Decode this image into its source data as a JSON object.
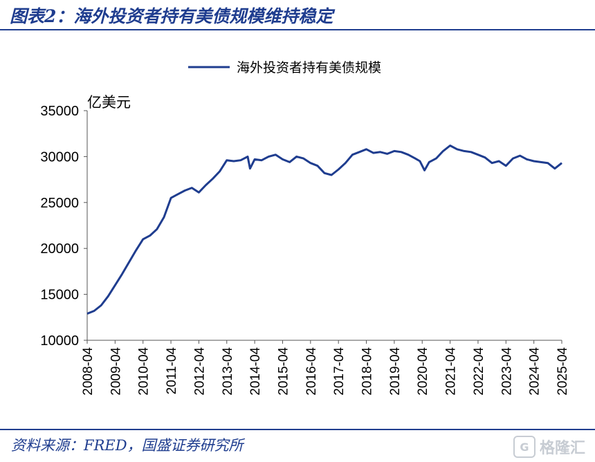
{
  "figure": {
    "title": "图表2：海外投资者持有美债规模维持稳定",
    "source": "资料来源：FRED，国盛证券研究所",
    "accent_color": "#1f3d8f"
  },
  "watermark": {
    "icon": "g-logo-icon",
    "icon_glyph": "G",
    "text": "格隆汇"
  },
  "chart_data": {
    "type": "line",
    "yunit": "亿美元",
    "ylim": [
      10000,
      35000
    ],
    "yticks": [
      10000,
      15000,
      20000,
      25000,
      30000,
      35000
    ],
    "xticks": [
      "2008-04",
      "2009-04",
      "2010-04",
      "2011-04",
      "2012-04",
      "2013-04",
      "2014-04",
      "2015-04",
      "2016-04",
      "2017-04",
      "2018-04",
      "2019-04",
      "2020-04",
      "2021-04",
      "2022-04",
      "2023-04",
      "2024-04",
      "2025-04"
    ],
    "legend_position": "top-center",
    "grid": false,
    "series": [
      {
        "name": "海外投资者持有美债规模",
        "color": "#1f3d8f",
        "points": [
          [
            "2008-04",
            12900
          ],
          [
            "2008-07",
            13200
          ],
          [
            "2008-10",
            13800
          ],
          [
            "2009-01",
            14800
          ],
          [
            "2009-04",
            16000
          ],
          [
            "2009-07",
            17200
          ],
          [
            "2009-10",
            18500
          ],
          [
            "2010-01",
            19800
          ],
          [
            "2010-04",
            21000
          ],
          [
            "2010-07",
            21400
          ],
          [
            "2010-10",
            22100
          ],
          [
            "2011-01",
            23400
          ],
          [
            "2011-04",
            25500
          ],
          [
            "2011-07",
            25900
          ],
          [
            "2011-10",
            26300
          ],
          [
            "2012-01",
            26600
          ],
          [
            "2012-04",
            26100
          ],
          [
            "2012-07",
            26900
          ],
          [
            "2012-10",
            27600
          ],
          [
            "2013-01",
            28400
          ],
          [
            "2013-04",
            29600
          ],
          [
            "2013-07",
            29500
          ],
          [
            "2013-10",
            29600
          ],
          [
            "2014-01",
            30000
          ],
          [
            "2014-02",
            28700
          ],
          [
            "2014-04",
            29700
          ],
          [
            "2014-07",
            29600
          ],
          [
            "2014-10",
            30000
          ],
          [
            "2015-01",
            30200
          ],
          [
            "2015-04",
            29700
          ],
          [
            "2015-07",
            29400
          ],
          [
            "2015-10",
            30000
          ],
          [
            "2016-01",
            29800
          ],
          [
            "2016-04",
            29300
          ],
          [
            "2016-07",
            29000
          ],
          [
            "2016-10",
            28200
          ],
          [
            "2017-01",
            28000
          ],
          [
            "2017-04",
            28600
          ],
          [
            "2017-07",
            29300
          ],
          [
            "2017-10",
            30200
          ],
          [
            "2018-01",
            30500
          ],
          [
            "2018-04",
            30800
          ],
          [
            "2018-07",
            30400
          ],
          [
            "2018-10",
            30500
          ],
          [
            "2019-01",
            30300
          ],
          [
            "2019-04",
            30600
          ],
          [
            "2019-07",
            30500
          ],
          [
            "2019-10",
            30200
          ],
          [
            "2020-01",
            29800
          ],
          [
            "2020-03",
            29500
          ],
          [
            "2020-05",
            28500
          ],
          [
            "2020-07",
            29400
          ],
          [
            "2020-10",
            29800
          ],
          [
            "2021-01",
            30600
          ],
          [
            "2021-04",
            31200
          ],
          [
            "2021-07",
            30800
          ],
          [
            "2021-10",
            30600
          ],
          [
            "2022-01",
            30500
          ],
          [
            "2022-04",
            30200
          ],
          [
            "2022-07",
            29900
          ],
          [
            "2022-10",
            29300
          ],
          [
            "2023-01",
            29500
          ],
          [
            "2023-04",
            29000
          ],
          [
            "2023-07",
            29800
          ],
          [
            "2023-10",
            30100
          ],
          [
            "2024-01",
            29700
          ],
          [
            "2024-04",
            29500
          ],
          [
            "2024-07",
            29400
          ],
          [
            "2024-10",
            29300
          ],
          [
            "2025-01",
            28700
          ],
          [
            "2025-04",
            29300
          ]
        ]
      }
    ]
  }
}
